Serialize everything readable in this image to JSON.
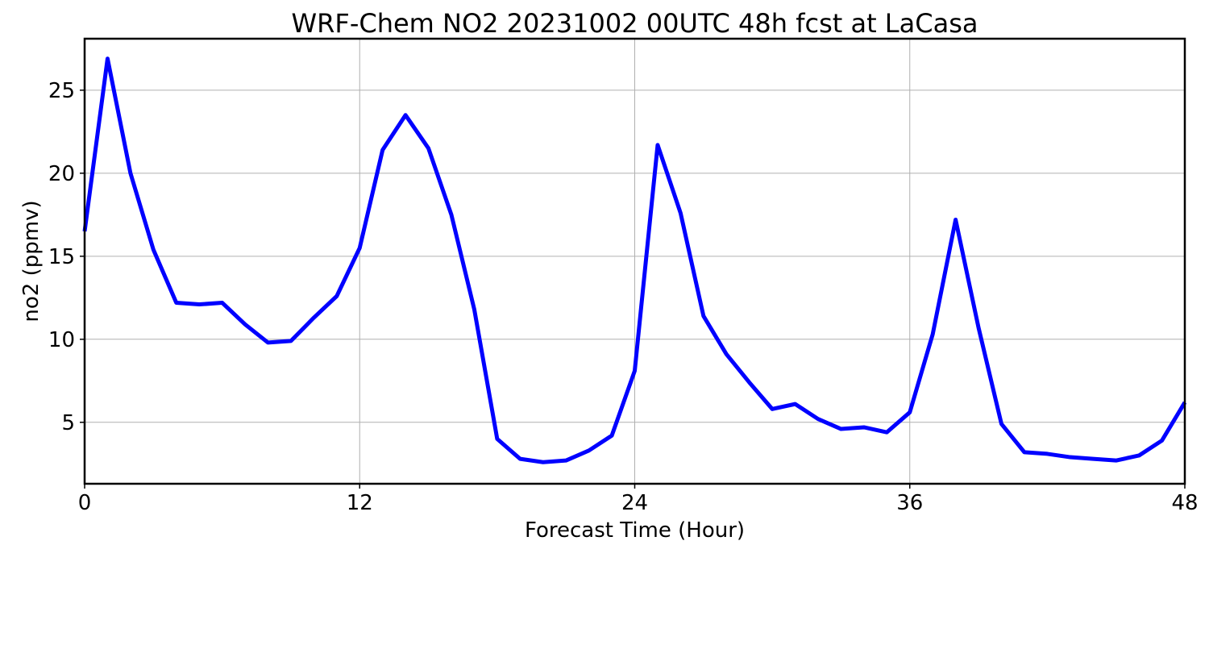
{
  "chart_data": {
    "type": "line",
    "title": "WRF-Chem NO2  20231002 00UTC 48h fcst at LaCasa",
    "xlabel": "Forecast Time (Hour)",
    "ylabel": "no2  (ppmv)",
    "xlim": [
      0,
      48
    ],
    "ylim": [
      1.3,
      28.1
    ],
    "xticks": [
      0,
      12,
      24,
      36,
      48
    ],
    "yticks": [
      5,
      10,
      15,
      20,
      25
    ],
    "grid": true,
    "series": [
      {
        "color": "#0000ff",
        "x": [
          0,
          1,
          2,
          3,
          4,
          5,
          6,
          7,
          8,
          9,
          10,
          11,
          12,
          13,
          14,
          15,
          16,
          17,
          18,
          19,
          20,
          21,
          22,
          23,
          24,
          25,
          26,
          27,
          28,
          29,
          30,
          31,
          32,
          33,
          34,
          35,
          36,
          37,
          38,
          39,
          40,
          41,
          42,
          43,
          44,
          45,
          46,
          47,
          48
        ],
        "values": [
          16.5,
          26.9,
          20.0,
          15.4,
          12.2,
          12.1,
          12.2,
          10.9,
          9.8,
          9.9,
          11.3,
          12.6,
          15.5,
          21.4,
          23.5,
          21.5,
          17.5,
          11.8,
          4.0,
          2.8,
          2.6,
          2.7,
          3.3,
          4.2,
          8.1,
          21.7,
          17.6,
          11.4,
          9.1,
          7.4,
          5.8,
          6.1,
          5.2,
          4.6,
          4.7,
          4.4,
          5.6,
          10.3,
          17.2,
          10.7,
          4.9,
          3.2,
          3.1,
          2.9,
          2.8,
          2.7,
          3.0,
          3.9,
          6.2
        ]
      }
    ]
  }
}
